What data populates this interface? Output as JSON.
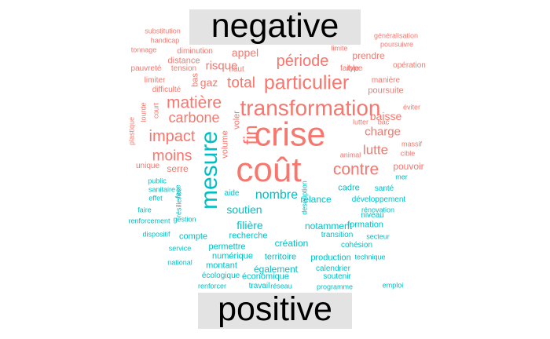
{
  "colors": {
    "negative": "#f8766d",
    "positive": "#00bfc4"
  },
  "labels": {
    "negative": "negative",
    "positive": "positive"
  },
  "negative_words": [
    "substitution",
    "généralisation",
    "handicap",
    "poursuivre",
    "tonnage",
    "diminution",
    "limite",
    "prendre",
    "distance",
    "opération",
    "pauvreté",
    "tension",
    "type",
    "faible",
    "manière",
    "limiter",
    "haut",
    "poursuite",
    "difficulté",
    "lourde",
    "court",
    "bas",
    "éviter",
    "lutter",
    "bac",
    "plastique",
    "massif",
    "unique",
    "cible",
    "animal",
    "appel",
    "risque",
    "gaz",
    "total",
    "période",
    "particulier",
    "matière",
    "carbone",
    "transformation",
    "impact",
    "crise",
    "moins",
    "serre",
    "coût",
    "fin",
    "voler",
    "volume",
    "contre",
    "lutte",
    "charge",
    "baisse",
    "pouvoir"
  ],
  "positive_words": [
    "mesure",
    "nombre",
    "soutien",
    "relance",
    "cadre",
    "santé",
    "développement",
    "rénovation",
    "niveau",
    "mer",
    "public",
    "sanitaire",
    "face",
    "effet",
    "résilience",
    "description",
    "aide",
    "faire",
    "renforcement",
    "gestion",
    "filière",
    "notamment",
    "formation",
    "dispositif",
    "compte",
    "recherche",
    "transition",
    "secteur",
    "service",
    "permettre",
    "création",
    "cohésion",
    "numérique",
    "territoire",
    "production",
    "technique",
    "national",
    "montant",
    "également",
    "calendrier",
    "écologique",
    "économique",
    "soutenir",
    "renforcer",
    "travail",
    "réseau",
    "programme",
    "emploi"
  ]
}
